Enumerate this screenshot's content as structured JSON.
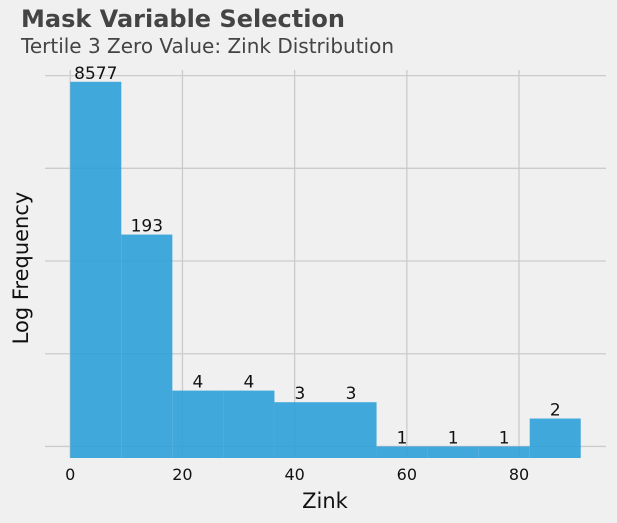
{
  "header": {
    "title": "Mask Variable Selection",
    "subtitle": "Tertile 3 Zero Value: Zink Distribution"
  },
  "chart_data": {
    "type": "bar",
    "histogram": true,
    "title": "Mask Variable Selection",
    "subtitle": "Tertile 3 Zero Value: Zink Distribution",
    "xlabel": "Zink",
    "ylabel": "Log Frequency",
    "y_scale": "log",
    "bins": [
      {
        "x0": 0,
        "x1": 9.1,
        "count": 8577
      },
      {
        "x0": 9.1,
        "x1": 18.2,
        "count": 193
      },
      {
        "x0": 18.2,
        "x1": 27.3,
        "count": 4
      },
      {
        "x0": 27.3,
        "x1": 36.4,
        "count": 4
      },
      {
        "x0": 36.4,
        "x1": 45.5,
        "count": 3
      },
      {
        "x0": 45.5,
        "x1": 54.6,
        "count": 3
      },
      {
        "x0": 54.6,
        "x1": 63.7,
        "count": 1
      },
      {
        "x0": 63.7,
        "x1": 72.8,
        "count": 1
      },
      {
        "x0": 72.8,
        "x1": 81.9,
        "count": 1
      },
      {
        "x0": 81.9,
        "x1": 91.0,
        "count": 2
      }
    ],
    "xticks": [
      0,
      20,
      40,
      60,
      80
    ],
    "xlim": [
      -4.5,
      95.5
    ],
    "ylim": [
      0.75,
      11500
    ],
    "y_gridlines": [
      1,
      10,
      100,
      1000,
      10000
    ],
    "grid": true,
    "colors": {
      "bar": "#2ea0d9",
      "grid": "#cbcbcb",
      "background": "#f0f0f0"
    }
  }
}
